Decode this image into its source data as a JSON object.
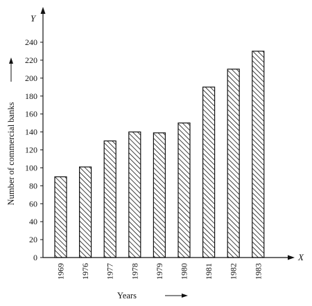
{
  "chart_data": {
    "type": "bar",
    "categories": [
      "1969",
      "1976",
      "1977",
      "1978",
      "1979",
      "1980",
      "1981",
      "1982",
      "1983"
    ],
    "values": [
      90,
      101,
      130,
      140,
      139,
      150,
      190,
      210,
      230
    ],
    "xlabel": "Years",
    "ylabel": "Number of commercial banks",
    "x_axis_letter": "X",
    "y_axis_letter": "Y",
    "ylim": [
      0,
      240
    ],
    "yticks": [
      0,
      20,
      40,
      60,
      80,
      100,
      120,
      140,
      160,
      180,
      200,
      220,
      240
    ],
    "grid": false,
    "bar_fill": "diagonal-hatch",
    "colors": {
      "ink": "#111111",
      "background": "#ffffff"
    }
  }
}
